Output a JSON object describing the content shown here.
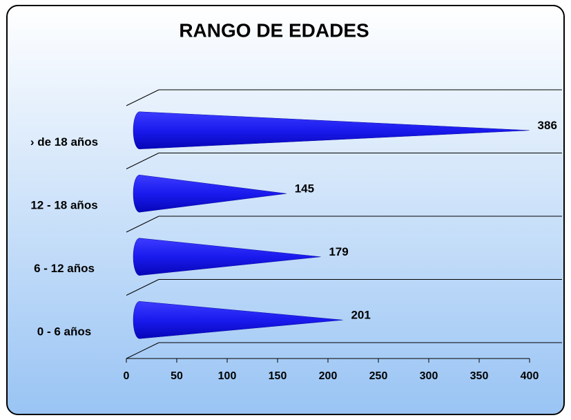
{
  "chart_data": {
    "type": "bar",
    "title": "RANGO DE EDADES",
    "categories": [
      "0 - 6 años",
      "6 - 12 años",
      "12 - 18 años",
      "› de 18 años"
    ],
    "values": [
      201,
      179,
      145,
      386
    ],
    "color": "#1a1aee",
    "xlim": [
      0,
      400
    ],
    "xticks": [
      0,
      50,
      100,
      150,
      200,
      250,
      300,
      350,
      400
    ],
    "grid": true
  }
}
